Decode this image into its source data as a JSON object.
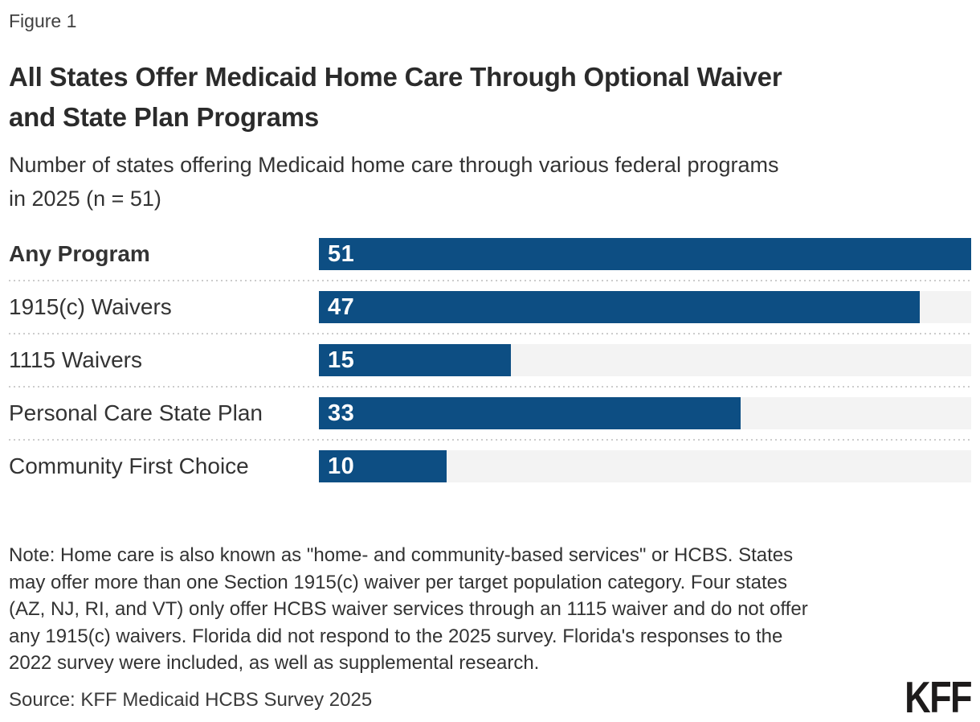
{
  "figure_label": "Figure 1",
  "title": "All States Offer Medicaid Home Care Through Optional Waiver\nand State Plan Programs",
  "subtitle": "Number of states offering Medicaid home care through various federal programs\nin 2025 (n = 51)",
  "note": "Note: Home care is also known as \"home- and community-based services\" or HCBS. States\nmay offer more than one Section 1915(c) waiver per target population category. Four states\n(AZ, NJ, RI, and VT) only offer HCBS waiver services through an 1115 waiver and do not offer\nany 1915(c) waivers. Florida did not respond to the 2025 survey. Florida's responses to the\n2022 survey were included, as well as supplemental research.",
  "source": "Source: KFF Medicaid HCBS Survey 2025",
  "logo_text": "KFF",
  "colors": {
    "bar": "#0d4e83",
    "track": "#f3f3f3",
    "separator": "#cccccc",
    "title_text": "#2b2b2b",
    "body_text": "#333333",
    "value_label": "#ffffff",
    "logo": "#1d1b1b",
    "background": "#ffffff"
  },
  "chart_data": {
    "type": "bar",
    "orientation": "horizontal",
    "title": "All States Offer Medicaid Home Care Through Optional Waiver and State Plan Programs",
    "subtitle": "Number of states offering Medicaid home care through various federal programs in 2025 (n = 51)",
    "categories": [
      "Any Program",
      "1915(c) Waivers",
      "1115 Waivers",
      "Personal Care State Plan",
      "Community First Choice"
    ],
    "values": [
      51,
      47,
      15,
      33,
      10
    ],
    "max_value": 51,
    "bold_categories": [
      "Any Program"
    ],
    "value_labels": "inside-left",
    "xlim": [
      0,
      51
    ],
    "grid": false,
    "legend": false
  }
}
